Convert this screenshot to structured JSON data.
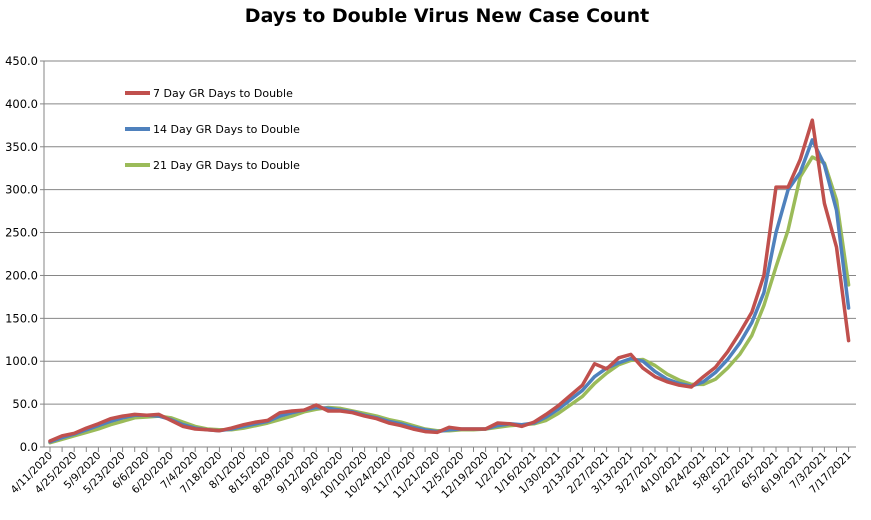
{
  "chart_data": {
    "type": "line",
    "title": "Days to Double Virus New Case Count",
    "xlabel": "",
    "ylabel": "",
    "ylim": [
      0,
      450
    ],
    "y_ticks": [
      "0.0",
      "50.0",
      "100.0",
      "150.0",
      "200.0",
      "250.0",
      "300.0",
      "350.0",
      "400.0",
      "450.0"
    ],
    "grid": "horizontal",
    "legend_position": "top-left (inside plot)",
    "x": [
      "4/11/2020",
      "4/18/2020",
      "4/25/2020",
      "5/2/2020",
      "5/9/2020",
      "5/16/2020",
      "5/23/2020",
      "5/30/2020",
      "6/6/2020",
      "6/13/2020",
      "6/20/2020",
      "6/27/2020",
      "7/4/2020",
      "7/11/2020",
      "7/18/2020",
      "7/25/2020",
      "8/1/2020",
      "8/8/2020",
      "8/15/2020",
      "8/22/2020",
      "8/29/2020",
      "9/5/2020",
      "9/12/2020",
      "9/19/2020",
      "9/26/2020",
      "10/3/2020",
      "10/10/2020",
      "10/17/2020",
      "10/24/2020",
      "10/31/2020",
      "11/7/2020",
      "11/14/2020",
      "11/21/2020",
      "11/28/2020",
      "12/5/2020",
      "12/12/2020",
      "12/19/2020",
      "12/26/2020",
      "1/2/2021",
      "1/9/2021",
      "1/16/2021",
      "1/23/2021",
      "1/30/2021",
      "2/6/2021",
      "2/13/2021",
      "2/20/2021",
      "2/27/2021",
      "3/6/2021",
      "3/13/2021",
      "3/20/2021",
      "3/27/2021",
      "4/3/2021",
      "4/10/2021",
      "4/17/2021",
      "4/24/2021",
      "5/1/2021",
      "5/8/2021",
      "5/15/2021",
      "5/22/2021",
      "5/29/2021",
      "6/5/2021",
      "6/12/2021",
      "6/19/2021",
      "6/26/2021",
      "7/3/2021",
      "7/10/2021",
      "7/17/2021"
    ],
    "x_tick_labels": [
      "4/11/2020",
      "4/25/2020",
      "5/9/2020",
      "5/23/2020",
      "6/6/2020",
      "6/20/2020",
      "7/4/2020",
      "7/18/2020",
      "8/1/2020",
      "8/15/2020",
      "8/29/2020",
      "9/12/2020",
      "9/26/2020",
      "10/10/2020",
      "10/24/2020",
      "11/7/2020",
      "11/21/2020",
      "12/5/2020",
      "12/19/2020",
      "1/2/2021",
      "1/16/2021",
      "1/30/2021",
      "2/13/2021",
      "2/27/2021",
      "3/13/2021",
      "3/27/2021",
      "4/10/2021",
      "4/24/2021",
      "5/8/2021",
      "5/22/2021",
      "6/5/2021",
      "6/19/2021",
      "7/3/2021",
      "7/17/2021"
    ],
    "series": [
      {
        "name": "7 Day GR Days to Double",
        "color": "#C0504D",
        "values": [
          7,
          13,
          16,
          22,
          27,
          33,
          36,
          38,
          37,
          38,
          31,
          24,
          21,
          20,
          19,
          22,
          26,
          29,
          31,
          40,
          42,
          43,
          49,
          42,
          42,
          40,
          36,
          33,
          28,
          25,
          21,
          18,
          17,
          23,
          21,
          21,
          21,
          28,
          27,
          24,
          29,
          38,
          48,
          60,
          72,
          97,
          91,
          104,
          108,
          92,
          82,
          76,
          72,
          70,
          82,
          93,
          111,
          133,
          157,
          200,
          303,
          303,
          335,
          381,
          284,
          233,
          124
        ]
      },
      {
        "name": "14 Day GR Days to Double",
        "color": "#4F81BD",
        "values": [
          6,
          11,
          15,
          20,
          25,
          30,
          34,
          37,
          37,
          36,
          32,
          26,
          22,
          20,
          19,
          21,
          24,
          27,
          30,
          36,
          40,
          43,
          46,
          45,
          43,
          41,
          37,
          34,
          30,
          27,
          23,
          20,
          18,
          20,
          21,
          21,
          21,
          25,
          27,
          26,
          28,
          35,
          44,
          55,
          66,
          82,
          92,
          98,
          103,
          100,
          88,
          79,
          74,
          71,
          76,
          87,
          102,
          121,
          145,
          180,
          250,
          300,
          320,
          358,
          329,
          276,
          162
        ]
      },
      {
        "name": "21 Day GR Days to Double",
        "color": "#9BBB59",
        "values": [
          5,
          9,
          13,
          17,
          21,
          26,
          30,
          34,
          35,
          36,
          34,
          29,
          24,
          21,
          20,
          20,
          22,
          25,
          28,
          32,
          36,
          41,
          44,
          46,
          45,
          42,
          39,
          36,
          32,
          29,
          25,
          21,
          19,
          19,
          20,
          20,
          21,
          23,
          25,
          26,
          27,
          31,
          39,
          49,
          59,
          74,
          86,
          96,
          101,
          102,
          95,
          85,
          78,
          73,
          73,
          79,
          92,
          108,
          130,
          165,
          210,
          253,
          315,
          338,
          331,
          288,
          189
        ]
      }
    ]
  }
}
